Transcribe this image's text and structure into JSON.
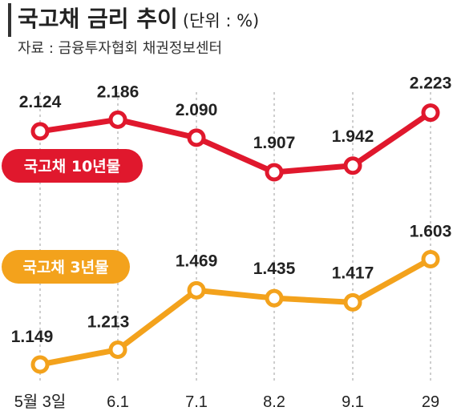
{
  "header": {
    "title": "국고채 금리 추이",
    "unit": "(단위 : %)",
    "source": "자료 : 금융투자협회 채권정보센터"
  },
  "colors": {
    "series_10y": "#e0182d",
    "series_3y": "#f3a21c",
    "grid": "#bdbdbd"
  },
  "chart_data": {
    "type": "line",
    "title": "국고채 금리 추이",
    "unit": "(단위 : %)",
    "categories": [
      "5월 3일",
      "6.1",
      "7.1",
      "8.2",
      "9.1",
      "29"
    ],
    "series": [
      {
        "name": "국고채 10년물",
        "values": [
          2.124,
          2.186,
          2.09,
          1.907,
          1.942,
          2.223
        ],
        "labels": [
          "2.124",
          "2.186",
          "2.090",
          "1.907",
          "1.942",
          "2.223"
        ]
      },
      {
        "name": "국고채 3년물",
        "values": [
          1.149,
          1.213,
          1.469,
          1.435,
          1.417,
          1.603
        ],
        "labels": [
          "1.149",
          "1.213",
          "1.469",
          "1.435",
          "1.417",
          "1.603"
        ]
      }
    ],
    "grid": "vertical dashed",
    "legend": "inline labels"
  }
}
